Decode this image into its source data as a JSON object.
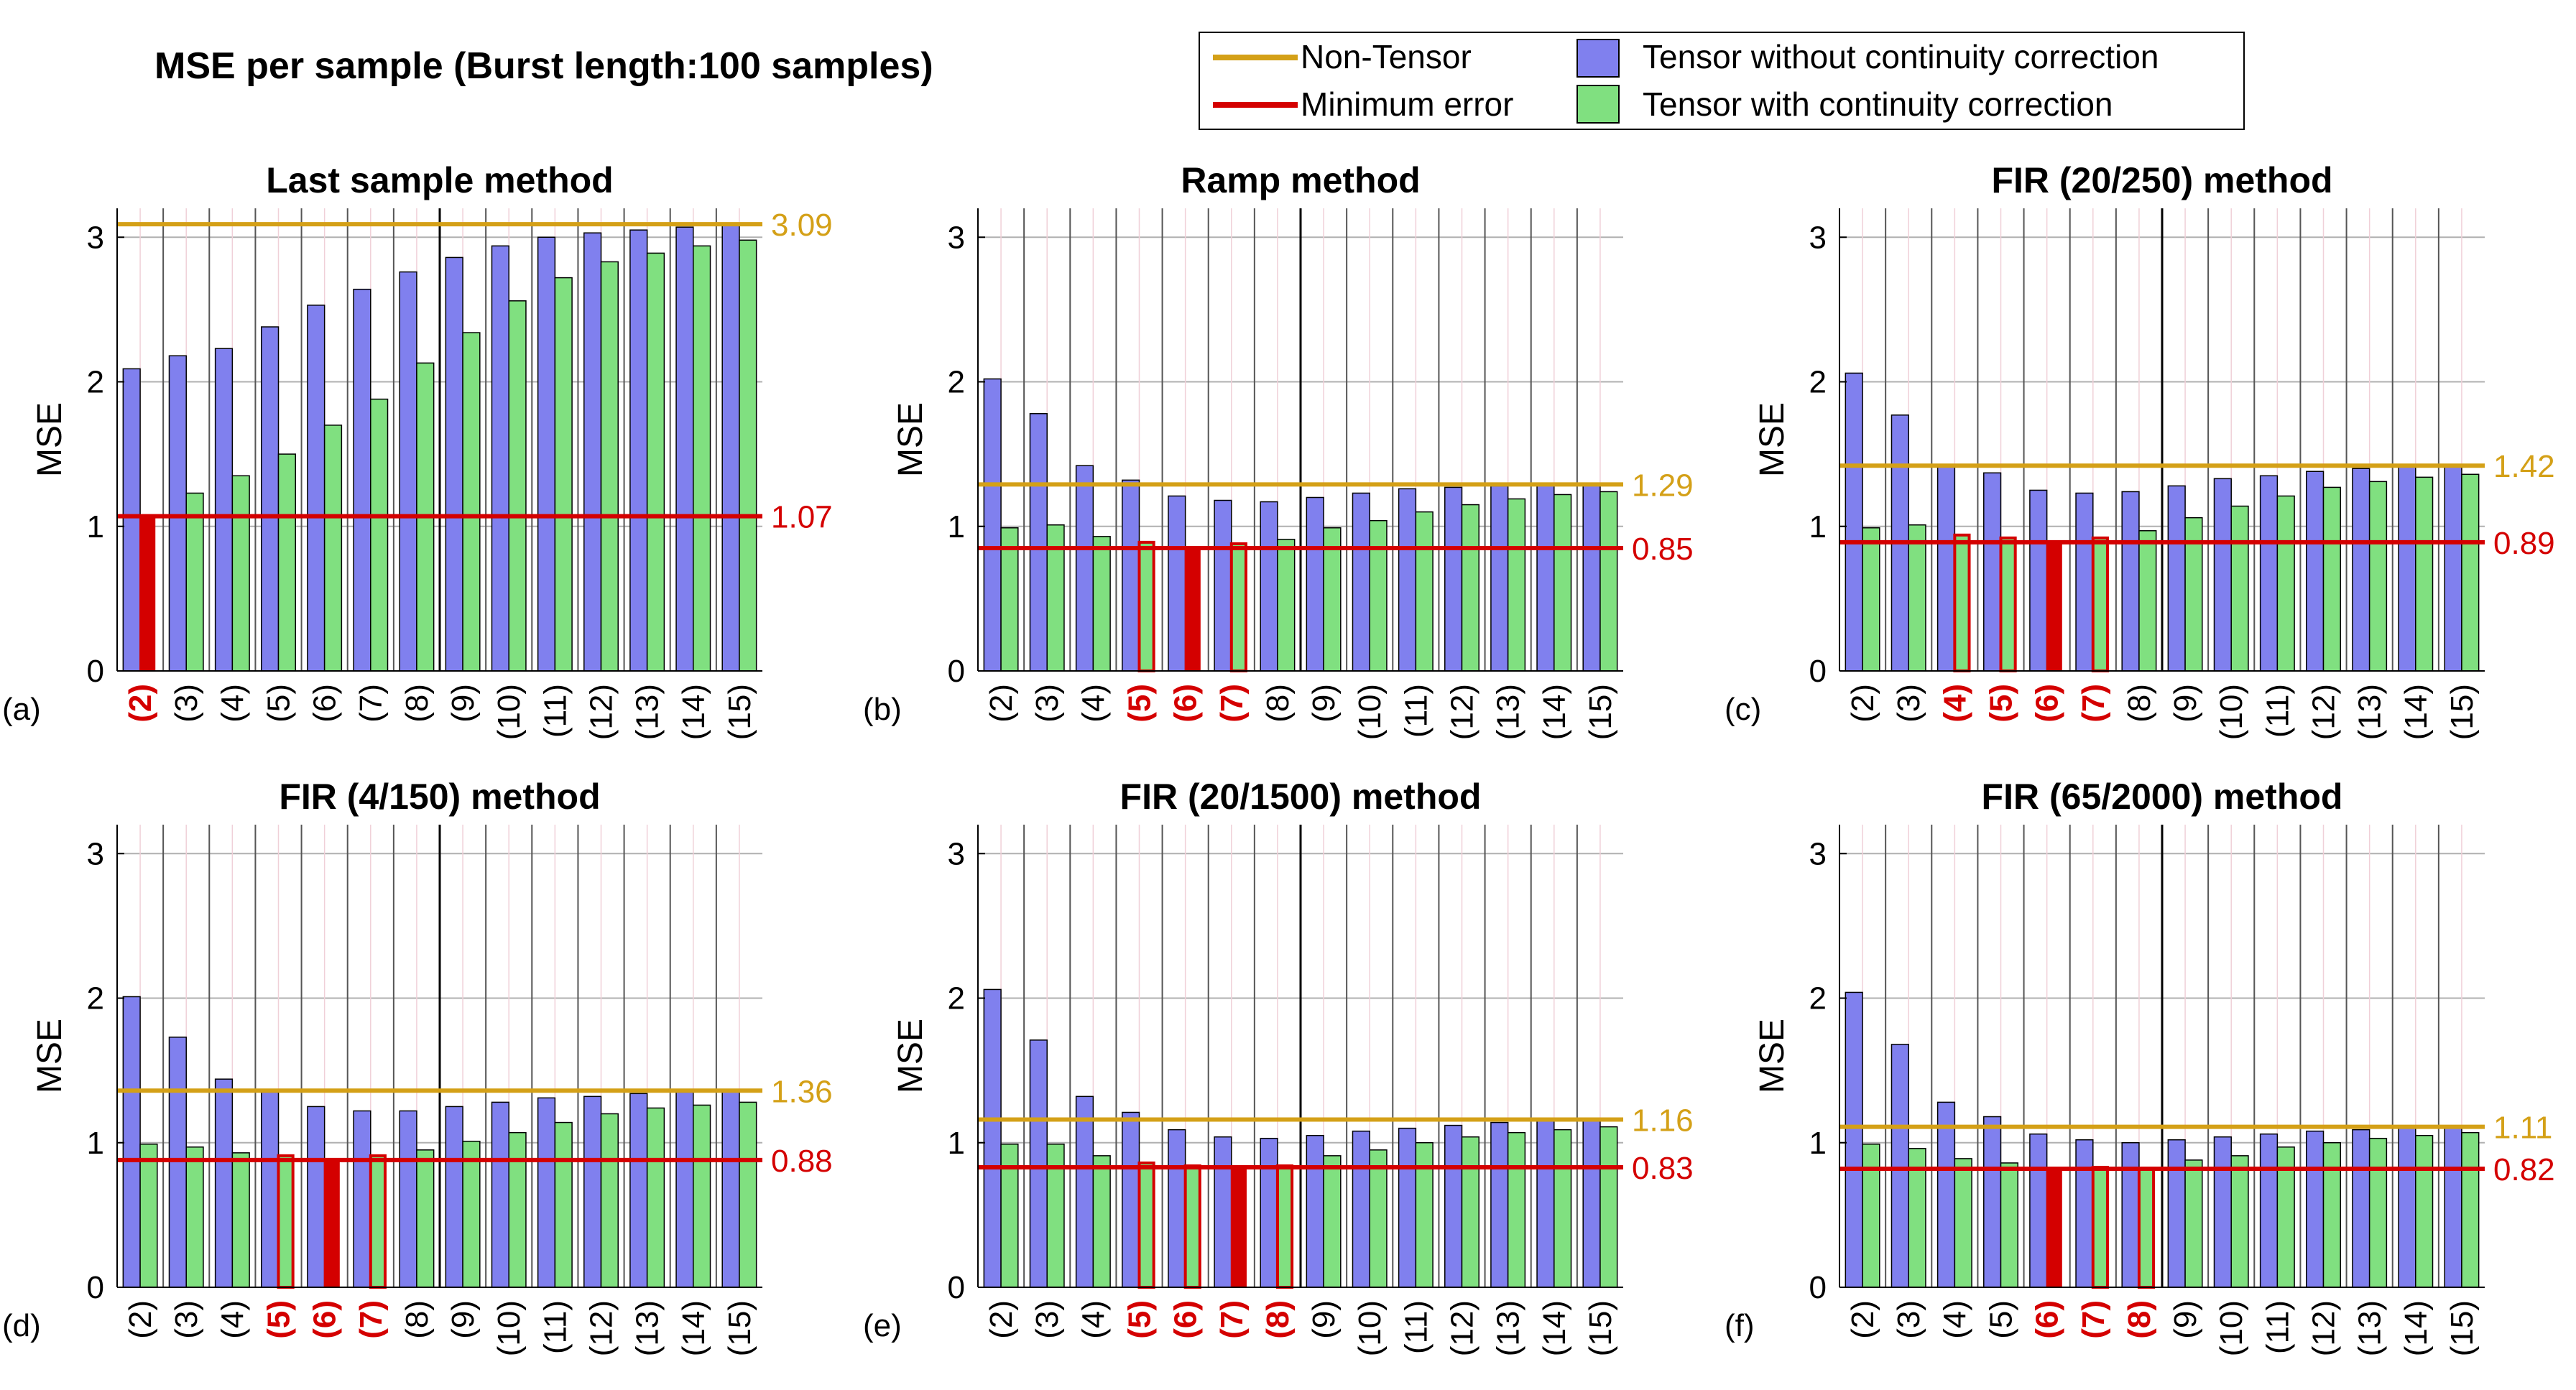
{
  "figure_title": "MSE per sample (Burst length:100 samples)",
  "legend": {
    "non_tensor": "Non-Tensor",
    "minimum_error": "Minimum error",
    "without_correction": "Tensor without continuity correction",
    "with_correction": "Tensor with continuity correction"
  },
  "colors": {
    "non_tensor": "#d4a017",
    "minimum_error": "#d40000",
    "without_correction": "#8080ee",
    "with_correction": "#80e080",
    "highlight_label": "#d40000"
  },
  "chart_data": [
    {
      "type": "bar",
      "panel": "(a)",
      "title": "Last sample method",
      "ylabel": "MSE",
      "ylim": [
        0,
        3.2
      ],
      "yticks": [
        0,
        1,
        2,
        3
      ],
      "categories": [
        "(2)",
        "(3)",
        "(4)",
        "(5)",
        "(6)",
        "(7)",
        "(8)",
        "(9)",
        "(10)",
        "(11)",
        "(12)",
        "(13)",
        "(14)",
        "(15)"
      ],
      "series": [
        {
          "name": "Tensor without continuity correction",
          "values": [
            2.09,
            2.18,
            2.23,
            2.38,
            2.53,
            2.64,
            2.76,
            2.86,
            2.94,
            3.0,
            3.03,
            3.05,
            3.07,
            3.09
          ]
        },
        {
          "name": "Tensor with continuity correction",
          "values": [
            1.07,
            1.23,
            1.35,
            1.5,
            1.7,
            1.88,
            2.13,
            2.34,
            2.56,
            2.72,
            2.83,
            2.89,
            2.94,
            2.98
          ]
        }
      ],
      "non_tensor": 3.09,
      "non_tensor_label": "3.09",
      "minimum_error": 1.07,
      "minimum_error_label": "1.07",
      "highlighted": [
        "(2)"
      ],
      "min_index": 0
    },
    {
      "type": "bar",
      "panel": "(b)",
      "title": "Ramp method",
      "ylabel": "MSE",
      "ylim": [
        0,
        3.2
      ],
      "yticks": [
        0,
        1,
        2,
        3
      ],
      "categories": [
        "(2)",
        "(3)",
        "(4)",
        "(5)",
        "(6)",
        "(7)",
        "(8)",
        "(9)",
        "(10)",
        "(11)",
        "(12)",
        "(13)",
        "(14)",
        "(15)"
      ],
      "series": [
        {
          "name": "Tensor without continuity correction",
          "values": [
            2.02,
            1.78,
            1.42,
            1.32,
            1.21,
            1.18,
            1.17,
            1.2,
            1.23,
            1.26,
            1.27,
            1.28,
            1.29,
            1.29
          ]
        },
        {
          "name": "Tensor with continuity correction",
          "values": [
            0.99,
            1.01,
            0.93,
            0.89,
            0.85,
            0.88,
            0.91,
            0.99,
            1.04,
            1.1,
            1.15,
            1.19,
            1.22,
            1.24
          ]
        }
      ],
      "non_tensor": 1.29,
      "non_tensor_label": "1.29",
      "minimum_error": 0.85,
      "minimum_error_label": "0.85",
      "highlighted": [
        "(5)",
        "(6)",
        "(7)"
      ],
      "min_index": 4
    },
    {
      "type": "bar",
      "panel": "(c)",
      "title": "FIR (20/250) method",
      "ylabel": "MSE",
      "ylim": [
        0,
        3.2
      ],
      "yticks": [
        0,
        1,
        2,
        3
      ],
      "categories": [
        "(2)",
        "(3)",
        "(4)",
        "(5)",
        "(6)",
        "(7)",
        "(8)",
        "(9)",
        "(10)",
        "(11)",
        "(12)",
        "(13)",
        "(14)",
        "(15)"
      ],
      "series": [
        {
          "name": "Tensor without continuity correction",
          "values": [
            2.06,
            1.77,
            1.42,
            1.37,
            1.25,
            1.23,
            1.24,
            1.28,
            1.33,
            1.35,
            1.38,
            1.4,
            1.41,
            1.42
          ]
        },
        {
          "name": "Tensor with continuity correction",
          "values": [
            0.99,
            1.01,
            0.94,
            0.92,
            0.89,
            0.92,
            0.97,
            1.06,
            1.14,
            1.21,
            1.27,
            1.31,
            1.34,
            1.36
          ]
        }
      ],
      "non_tensor": 1.42,
      "non_tensor_label": "1.42",
      "minimum_error": 0.89,
      "minimum_error_label": "0.89",
      "highlighted": [
        "(4)",
        "(5)",
        "(6)",
        "(7)"
      ],
      "min_index": 4
    },
    {
      "type": "bar",
      "panel": "(d)",
      "title": "FIR (4/150) method",
      "ylabel": "MSE",
      "ylim": [
        0,
        3.2
      ],
      "yticks": [
        0,
        1,
        2,
        3
      ],
      "categories": [
        "(2)",
        "(3)",
        "(4)",
        "(5)",
        "(6)",
        "(7)",
        "(8)",
        "(9)",
        "(10)",
        "(11)",
        "(12)",
        "(13)",
        "(14)",
        "(15)"
      ],
      "series": [
        {
          "name": "Tensor without continuity correction",
          "values": [
            2.01,
            1.73,
            1.44,
            1.35,
            1.25,
            1.22,
            1.22,
            1.25,
            1.28,
            1.31,
            1.32,
            1.34,
            1.35,
            1.36
          ]
        },
        {
          "name": "Tensor with continuity correction",
          "values": [
            0.99,
            0.97,
            0.93,
            0.91,
            0.88,
            0.91,
            0.95,
            1.01,
            1.07,
            1.14,
            1.2,
            1.24,
            1.26,
            1.28
          ]
        }
      ],
      "non_tensor": 1.36,
      "non_tensor_label": "1.36",
      "minimum_error": 0.88,
      "minimum_error_label": "0.88",
      "highlighted": [
        "(5)",
        "(6)",
        "(7)"
      ],
      "min_index": 4
    },
    {
      "type": "bar",
      "panel": "(e)",
      "title": "FIR (20/1500) method",
      "ylabel": "MSE",
      "ylim": [
        0,
        3.2
      ],
      "yticks": [
        0,
        1,
        2,
        3
      ],
      "categories": [
        "(2)",
        "(3)",
        "(4)",
        "(5)",
        "(6)",
        "(7)",
        "(8)",
        "(9)",
        "(10)",
        "(11)",
        "(12)",
        "(13)",
        "(14)",
        "(15)"
      ],
      "series": [
        {
          "name": "Tensor without continuity correction",
          "values": [
            2.06,
            1.71,
            1.32,
            1.21,
            1.09,
            1.04,
            1.03,
            1.05,
            1.08,
            1.1,
            1.12,
            1.14,
            1.15,
            1.16
          ]
        },
        {
          "name": "Tensor with continuity correction",
          "values": [
            0.99,
            0.99,
            0.91,
            0.86,
            0.84,
            0.83,
            0.84,
            0.91,
            0.95,
            1.0,
            1.04,
            1.07,
            1.09,
            1.11
          ]
        }
      ],
      "non_tensor": 1.16,
      "non_tensor_label": "1.16",
      "minimum_error": 0.83,
      "minimum_error_label": "0.83",
      "highlighted": [
        "(5)",
        "(6)",
        "(7)",
        "(8)"
      ],
      "min_index": 5
    },
    {
      "type": "bar",
      "panel": "(f)",
      "title": "FIR (65/2000) method",
      "ylabel": "MSE",
      "ylim": [
        0,
        3.2
      ],
      "yticks": [
        0,
        1,
        2,
        3
      ],
      "categories": [
        "(2)",
        "(3)",
        "(4)",
        "(5)",
        "(6)",
        "(7)",
        "(8)",
        "(9)",
        "(10)",
        "(11)",
        "(12)",
        "(13)",
        "(14)",
        "(15)"
      ],
      "series": [
        {
          "name": "Tensor without continuity correction",
          "values": [
            2.04,
            1.68,
            1.28,
            1.18,
            1.06,
            1.02,
            1.0,
            1.02,
            1.04,
            1.06,
            1.08,
            1.09,
            1.1,
            1.11
          ]
        },
        {
          "name": "Tensor with continuity correction",
          "values": [
            0.99,
            0.96,
            0.89,
            0.86,
            0.82,
            0.83,
            0.82,
            0.88,
            0.91,
            0.97,
            1.0,
            1.03,
            1.05,
            1.07
          ]
        }
      ],
      "non_tensor": 1.11,
      "non_tensor_label": "1.11",
      "minimum_error": 0.82,
      "minimum_error_label": "0.82",
      "highlighted": [
        "(6)",
        "(7)",
        "(8)"
      ],
      "min_index": 4
    }
  ]
}
